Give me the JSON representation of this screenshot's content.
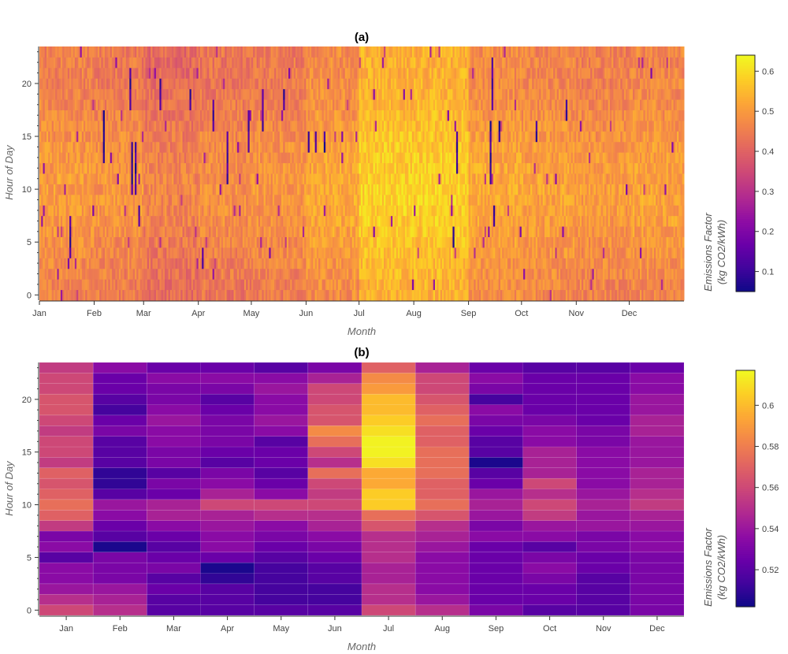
{
  "chart_data": [
    {
      "type": "heatmap",
      "title": "(a)",
      "xlabel": "Month",
      "ylabel": "Hour of Day",
      "x_tick_labels": [
        "Jan",
        "Feb",
        "Mar",
        "Apr",
        "May",
        "Jun",
        "Jul",
        "Aug",
        "Sep",
        "Oct",
        "Nov",
        "Dec"
      ],
      "y_ticks": [
        0,
        5,
        10,
        15,
        20
      ],
      "y_range": [
        0,
        23
      ],
      "x_resolution": "daily",
      "colorbar": {
        "label_line1": "Emissions Factor",
        "label_line2": "(kg CO2/kWh)",
        "ticks": [
          0.1,
          0.2,
          0.3,
          0.4,
          0.5,
          0.6
        ],
        "range": [
          0.05,
          0.64
        ],
        "colormap": "plasma"
      },
      "base_level_by_month": [
        0.48,
        0.47,
        0.44,
        0.46,
        0.47,
        0.5,
        0.56,
        0.56,
        0.5,
        0.49,
        0.48,
        0.49
      ],
      "dark_spikes": [
        {
          "day": 17,
          "hours": [
            4,
            5,
            6,
            7
          ]
        },
        {
          "day": 36,
          "hours": [
            13,
            14,
            15,
            16,
            17
          ]
        },
        {
          "day": 51,
          "hours": [
            18,
            19,
            20,
            21
          ]
        },
        {
          "day": 52,
          "hours": [
            10,
            11,
            12,
            13,
            14
          ]
        },
        {
          "day": 54,
          "hours": [
            10,
            11,
            12,
            13,
            14
          ]
        },
        {
          "day": 56,
          "hours": [
            7,
            8
          ]
        },
        {
          "day": 68,
          "hours": [
            18,
            19,
            20
          ]
        },
        {
          "day": 85,
          "hours": [
            18,
            19
          ]
        },
        {
          "day": 92,
          "hours": [
            3,
            4
          ]
        },
        {
          "day": 98,
          "hours": [
            16,
            17,
            18
          ]
        },
        {
          "day": 106,
          "hours": [
            11,
            12,
            13,
            14,
            15
          ]
        },
        {
          "day": 118,
          "hours": [
            14,
            15,
            16,
            17
          ]
        },
        {
          "day": 126,
          "hours": [
            16,
            17,
            18,
            19
          ]
        },
        {
          "day": 138,
          "hours": [
            18,
            19
          ]
        },
        {
          "day": 152,
          "hours": [
            14,
            15
          ]
        },
        {
          "day": 156,
          "hours": [
            14,
            15
          ]
        },
        {
          "day": 161,
          "hours": [
            14,
            15
          ]
        },
        {
          "day": 234,
          "hours": [
            5,
            6
          ]
        },
        {
          "day": 236,
          "hours": [
            12,
            13,
            14,
            15
          ]
        },
        {
          "day": 255,
          "hours": [
            11,
            12,
            13,
            14,
            15,
            16
          ]
        },
        {
          "day": 256,
          "hours": [
            18,
            19,
            20,
            21,
            22
          ]
        },
        {
          "day": 257,
          "hours": [
            7,
            8
          ]
        },
        {
          "day": 260,
          "hours": [
            15,
            16
          ]
        },
        {
          "day": 281,
          "hours": [
            15,
            16
          ]
        },
        {
          "day": 298,
          "hours": [
            17,
            18
          ]
        }
      ]
    },
    {
      "type": "heatmap",
      "title": "(b)",
      "xlabel": "Month",
      "ylabel": "Hour of Day",
      "categories": [
        "Jan",
        "Feb",
        "Mar",
        "Apr",
        "May",
        "Jun",
        "Jul",
        "Aug",
        "Sep",
        "Oct",
        "Nov",
        "Dec"
      ],
      "y_ticks": [
        0,
        5,
        10,
        15,
        20
      ],
      "y_range": [
        0,
        23
      ],
      "x_resolution": "monthly",
      "colorbar": {
        "label_line1": "Emissions Factor",
        "label_line2": "(kg CO2/kWh)",
        "ticks": [
          0.52,
          0.54,
          0.56,
          0.58,
          0.6
        ],
        "range": [
          0.502,
          0.617
        ],
        "colormap": "plasma"
      },
      "values_by_hour": [
        [
          0.56,
          0.55,
          0.52,
          0.52,
          0.52,
          0.52,
          0.56,
          0.55,
          0.53,
          0.52,
          0.52,
          0.53
        ],
        [
          0.55,
          0.545,
          0.52,
          0.52,
          0.515,
          0.515,
          0.55,
          0.54,
          0.525,
          0.525,
          0.52,
          0.53
        ],
        [
          0.54,
          0.54,
          0.525,
          0.52,
          0.515,
          0.515,
          0.55,
          0.535,
          0.525,
          0.525,
          0.52,
          0.53
        ],
        [
          0.535,
          0.53,
          0.52,
          0.51,
          0.515,
          0.52,
          0.545,
          0.535,
          0.525,
          0.53,
          0.52,
          0.53
        ],
        [
          0.535,
          0.53,
          0.53,
          0.505,
          0.515,
          0.52,
          0.545,
          0.535,
          0.525,
          0.535,
          0.525,
          0.53
        ],
        [
          0.52,
          0.53,
          0.525,
          0.525,
          0.52,
          0.525,
          0.55,
          0.535,
          0.525,
          0.53,
          0.525,
          0.53
        ],
        [
          0.535,
          0.505,
          0.52,
          0.535,
          0.525,
          0.53,
          0.55,
          0.54,
          0.525,
          0.52,
          0.53,
          0.535
        ],
        [
          0.53,
          0.52,
          0.525,
          0.535,
          0.53,
          0.535,
          0.55,
          0.545,
          0.535,
          0.535,
          0.53,
          0.535
        ],
        [
          0.555,
          0.525,
          0.535,
          0.54,
          0.535,
          0.545,
          0.565,
          0.55,
          0.53,
          0.54,
          0.54,
          0.54
        ],
        [
          0.57,
          0.535,
          0.545,
          0.545,
          0.55,
          0.55,
          0.575,
          0.565,
          0.54,
          0.555,
          0.54,
          0.545
        ],
        [
          0.575,
          0.54,
          0.545,
          0.56,
          0.56,
          0.56,
          0.605,
          0.575,
          0.545,
          0.56,
          0.545,
          0.555
        ],
        [
          0.57,
          0.52,
          0.525,
          0.545,
          0.535,
          0.555,
          0.605,
          0.57,
          0.54,
          0.55,
          0.54,
          0.55
        ],
        [
          0.565,
          0.51,
          0.53,
          0.535,
          0.525,
          0.56,
          0.595,
          0.57,
          0.525,
          0.56,
          0.535,
          0.545
        ],
        [
          0.57,
          0.51,
          0.52,
          0.53,
          0.52,
          0.575,
          0.595,
          0.575,
          0.52,
          0.545,
          0.535,
          0.545
        ],
        [
          0.555,
          0.52,
          0.53,
          0.52,
          0.525,
          0.55,
          0.61,
          0.575,
          0.505,
          0.545,
          0.535,
          0.54
        ],
        [
          0.56,
          0.52,
          0.53,
          0.525,
          0.525,
          0.56,
          0.615,
          0.575,
          0.52,
          0.545,
          0.535,
          0.54
        ],
        [
          0.56,
          0.52,
          0.535,
          0.53,
          0.52,
          0.575,
          0.615,
          0.57,
          0.52,
          0.535,
          0.53,
          0.54
        ],
        [
          0.555,
          0.53,
          0.535,
          0.53,
          0.535,
          0.585,
          0.61,
          0.57,
          0.525,
          0.535,
          0.53,
          0.545
        ],
        [
          0.56,
          0.525,
          0.54,
          0.53,
          0.54,
          0.565,
          0.605,
          0.575,
          0.53,
          0.53,
          0.525,
          0.545
        ],
        [
          0.565,
          0.515,
          0.535,
          0.525,
          0.535,
          0.565,
          0.6,
          0.57,
          0.535,
          0.525,
          0.525,
          0.54
        ],
        [
          0.565,
          0.52,
          0.53,
          0.52,
          0.535,
          0.56,
          0.6,
          0.565,
          0.515,
          0.525,
          0.525,
          0.54
        ],
        [
          0.56,
          0.525,
          0.53,
          0.53,
          0.54,
          0.56,
          0.59,
          0.56,
          0.53,
          0.525,
          0.525,
          0.535
        ],
        [
          0.56,
          0.525,
          0.535,
          0.535,
          0.535,
          0.545,
          0.585,
          0.56,
          0.535,
          0.525,
          0.525,
          0.535
        ],
        [
          0.555,
          0.535,
          0.525,
          0.525,
          0.52,
          0.53,
          0.57,
          0.545,
          0.525,
          0.52,
          0.52,
          0.525
        ]
      ]
    }
  ]
}
